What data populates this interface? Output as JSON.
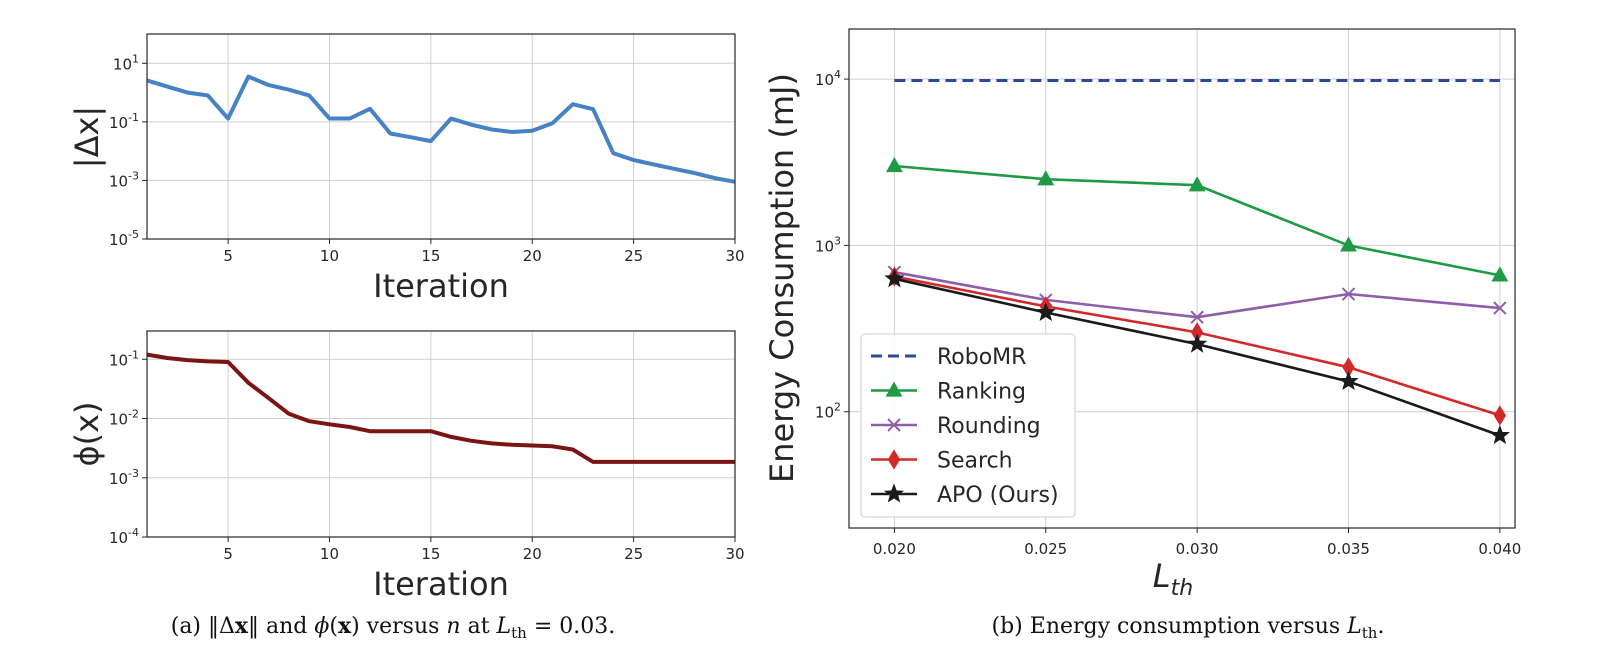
{
  "chart_data": [
    {
      "type": "line",
      "panel": "top-left",
      "xlabel": "Iteration",
      "ylabel": "|Δx|",
      "yscale": "log",
      "xlim": [
        1,
        30
      ],
      "ylim": [
        1e-05,
        100
      ],
      "grid": true,
      "x_ticks": [
        5,
        10,
        15,
        20,
        25,
        30
      ],
      "y_ticks": [
        {
          "base": "10",
          "exp": "1",
          "value": 10
        },
        {
          "base": "10",
          "exp": "-1",
          "value": 0.1
        },
        {
          "base": "10",
          "exp": "-3",
          "value": 0.001
        },
        {
          "base": "10",
          "exp": "-5",
          "value": 1e-05
        }
      ],
      "series": [
        {
          "color": "#4682c4",
          "x": [
            1,
            2,
            3,
            4,
            5,
            6,
            7,
            8,
            9,
            10,
            11,
            12,
            13,
            14,
            15,
            16,
            17,
            18,
            19,
            20,
            21,
            22,
            23,
            24,
            25,
            26,
            27,
            28,
            29,
            30
          ],
          "y": [
            2.6,
            1.6,
            1.0,
            0.8,
            0.13,
            3.5,
            1.8,
            1.25,
            0.8,
            0.13,
            0.13,
            0.28,
            0.04,
            0.03,
            0.022,
            0.13,
            0.08,
            0.055,
            0.045,
            0.05,
            0.09,
            0.4,
            0.27,
            0.0085,
            0.005,
            0.0035,
            0.0025,
            0.0018,
            0.0012,
            0.0009
          ]
        }
      ]
    },
    {
      "type": "line",
      "panel": "bottom-left",
      "xlabel": "Iteration",
      "ylabel": "ϕ(x)",
      "yscale": "log",
      "xlim": [
        1,
        30
      ],
      "ylim": [
        0.0001,
        0.3
      ],
      "grid": true,
      "x_ticks": [
        5,
        10,
        15,
        20,
        25,
        30
      ],
      "y_ticks": [
        {
          "base": "10",
          "exp": "-1",
          "value": 0.1
        },
        {
          "base": "10",
          "exp": "-2",
          "value": 0.01
        },
        {
          "base": "10",
          "exp": "-3",
          "value": 0.001
        },
        {
          "base": "10",
          "exp": "-4",
          "value": 0.0001
        }
      ],
      "series": [
        {
          "color": "#7b1412",
          "x": [
            1,
            2,
            3,
            4,
            5,
            6,
            7,
            8,
            9,
            10,
            11,
            12,
            13,
            14,
            15,
            16,
            17,
            18,
            19,
            20,
            21,
            22,
            23,
            24,
            25,
            26,
            27,
            28,
            29,
            30
          ],
          "y": [
            0.12,
            0.105,
            0.097,
            0.092,
            0.09,
            0.04,
            0.022,
            0.012,
            0.009,
            0.008,
            0.0072,
            0.0061,
            0.0061,
            0.0061,
            0.0061,
            0.0049,
            0.0042,
            0.0038,
            0.0036,
            0.0035,
            0.0034,
            0.003,
            0.00185,
            0.00185,
            0.00185,
            0.00185,
            0.00185,
            0.00185,
            0.00185,
            0.00185
          ]
        }
      ]
    },
    {
      "type": "line",
      "panel": "right",
      "xlabel_base": "L",
      "xlabel_sub": "th",
      "ylabel": "Energy Consumption (mJ)",
      "yscale": "log",
      "xlim": [
        0.0185,
        0.0405
      ],
      "ylim": [
        20,
        20000
      ],
      "grid": true,
      "legend": "bottom-left",
      "x": [
        0.02,
        0.025,
        0.03,
        0.035,
        0.04
      ],
      "x_ticks": [
        "0.020",
        "0.025",
        "0.030",
        "0.035",
        "0.040"
      ],
      "y_ticks": [
        {
          "base": "10",
          "exp": "2",
          "value": 100
        },
        {
          "base": "10",
          "exp": "3",
          "value": 1000
        },
        {
          "base": "10",
          "exp": "4",
          "value": 10000
        }
      ],
      "series": [
        {
          "name": "RoboMR",
          "color": "#2b4a9a",
          "dashed": true,
          "marker": "none",
          "values": [
            9800,
            9800,
            9800,
            9800,
            9800
          ]
        },
        {
          "name": "Ranking",
          "color": "#1f9a46",
          "dashed": false,
          "marker": "triangle",
          "values": [
            3000,
            2500,
            2300,
            1000,
            660
          ]
        },
        {
          "name": "Rounding",
          "color": "#8e5ea8",
          "dashed": false,
          "marker": "x",
          "values": [
            690,
            470,
            370,
            510,
            420
          ]
        },
        {
          "name": "Search",
          "color": "#d22a2a",
          "dashed": false,
          "marker": "diamond",
          "values": [
            650,
            430,
            300,
            185,
            95
          ]
        },
        {
          "name": "APO (Ours)",
          "color": "#1a1a1a",
          "dashed": false,
          "marker": "star",
          "values": [
            630,
            395,
            255,
            152,
            72
          ]
        }
      ]
    }
  ],
  "captions": {
    "a": "(a) ‖Δx‖ and ϕ(x) versus n at L_th = 0.03.",
    "b": "(b) Energy consumption versus L_th."
  }
}
